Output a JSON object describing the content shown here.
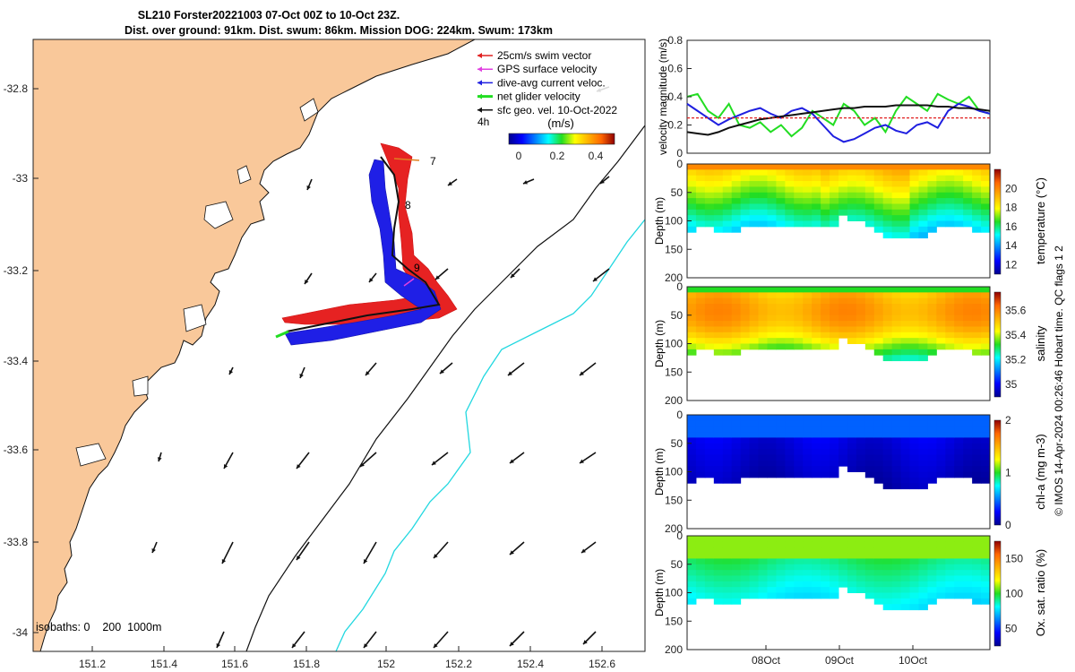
{
  "title": {
    "line1": "SL210 Forster20221003 07-Oct 00Z to 10-Oct 23Z.",
    "line2": "Dist. over ground: 91km. Dist. swum: 86km. Mission DOG: 224km. Swum: 173km"
  },
  "map": {
    "x_ticks": [
      "151.2",
      "151.4",
      "151.6",
      "151.8",
      "152",
      "152.2",
      "152.4",
      "152.6"
    ],
    "y_ticks": [
      "-32.8",
      "-33",
      "-33.2",
      "-33.4",
      "-33.6",
      "-33.8",
      "-34"
    ],
    "legend": [
      {
        "label": "25cm/s swim vector",
        "color": "#e02020"
      },
      {
        "label": "GPS surface velocity",
        "color": "#e040e0"
      },
      {
        "label": "dive-avg current veloc.",
        "color": "#1f1fe0"
      },
      {
        "label": "net glider velocity",
        "color": "#22dd22"
      },
      {
        "label": "sfc geo. vel. 10-Oct-2022",
        "color": "#111111"
      }
    ],
    "legend_extra": "4h",
    "colorbar_title": "(m/s)",
    "colorbar_ticks": [
      "0",
      "0.2",
      "0.4"
    ],
    "day_labels": [
      "7",
      "8",
      "9"
    ],
    "isobath_label": "isobaths: 0    200  1000m",
    "colors": {
      "land": "#f9c89a",
      "coast": "#111111",
      "iso200": "#111111",
      "iso1000": "#22d8e0"
    }
  },
  "chart_data": [
    {
      "type": "line",
      "title": "velocity magnitude",
      "ylabel": "velocity magnitude (m/s)",
      "ylim": [
        0,
        0.8
      ],
      "y_ticks": [
        "0",
        "0.2",
        "0.4",
        "0.6",
        "0.8"
      ],
      "series": [
        {
          "name": "net glider velocity",
          "color": "#22dd22",
          "values": [
            0.4,
            0.42,
            0.3,
            0.25,
            0.35,
            0.2,
            0.18,
            0.22,
            0.15,
            0.2,
            0.12,
            0.18,
            0.3,
            0.25,
            0.2,
            0.35,
            0.3,
            0.2,
            0.25,
            0.15,
            0.3,
            0.4,
            0.35,
            0.3,
            0.42,
            0.38,
            0.35,
            0.4,
            0.3,
            0.28
          ]
        },
        {
          "name": "dive-avg current veloc.",
          "color": "#1f1fe0",
          "values": [
            0.35,
            0.3,
            0.25,
            0.2,
            0.24,
            0.27,
            0.3,
            0.32,
            0.28,
            0.25,
            0.3,
            0.32,
            0.28,
            0.2,
            0.12,
            0.08,
            0.1,
            0.14,
            0.18,
            0.2,
            0.16,
            0.14,
            0.2,
            0.22,
            0.18,
            0.3,
            0.35,
            0.33,
            0.3,
            0.28
          ]
        },
        {
          "name": "sfc geo. vel.",
          "color": "#111111",
          "values": [
            0.15,
            0.14,
            0.13,
            0.15,
            0.18,
            0.2,
            0.22,
            0.24,
            0.25,
            0.26,
            0.27,
            0.28,
            0.29,
            0.3,
            0.31,
            0.32,
            0.32,
            0.33,
            0.33,
            0.33,
            0.34,
            0.34,
            0.34,
            0.34,
            0.33,
            0.33,
            0.32,
            0.32,
            0.31,
            0.3
          ]
        },
        {
          "name": "25cm/s swim",
          "color": "#e02020",
          "values": [
            0.25,
            0.25,
            0.25,
            0.25,
            0.25,
            0.25,
            0.25,
            0.25,
            0.25,
            0.25,
            0.25,
            0.25,
            0.25,
            0.25,
            0.25,
            0.25,
            0.25,
            0.25,
            0.25,
            0.25,
            0.25,
            0.25,
            0.25,
            0.25,
            0.25,
            0.25,
            0.25,
            0.25,
            0.25,
            0.25
          ]
        }
      ]
    },
    {
      "type": "heatmap",
      "title": "temperature",
      "ylabel": "Depth (m)",
      "ylim": [
        200,
        0
      ],
      "y_ticks": [
        "0",
        "50",
        "100",
        "150",
        "200"
      ],
      "colorbar_label": "temperature (°C)",
      "colorbar_ticks": [
        "12",
        "14",
        "16",
        "18",
        "20"
      ],
      "crange": [
        11,
        22
      ]
    },
    {
      "type": "heatmap",
      "title": "salinity",
      "ylabel": "Depth (m)",
      "ylim": [
        200,
        0
      ],
      "y_ticks": [
        "0",
        "50",
        "100",
        "150",
        "200"
      ],
      "colorbar_label": "salinity",
      "colorbar_ticks": [
        "35",
        "35.2",
        "35.4",
        "35.6"
      ],
      "crange": [
        34.9,
        35.75
      ]
    },
    {
      "type": "heatmap",
      "title": "chl-a",
      "ylabel": "Depth (m)",
      "ylim": [
        200,
        0
      ],
      "y_ticks": [
        "0",
        "50",
        "100",
        "150",
        "200"
      ],
      "colorbar_label": "chl-a (mg m-3)",
      "colorbar_ticks": [
        "0",
        "1",
        "2"
      ],
      "crange": [
        0,
        2
      ]
    },
    {
      "type": "heatmap",
      "title": "oxygen saturation",
      "ylabel": "Depth (m)",
      "ylim": [
        200,
        0
      ],
      "y_ticks": [
        "0",
        "50",
        "100",
        "150",
        "200"
      ],
      "colorbar_label": "Ox. sat. ratio (%)",
      "colorbar_ticks": [
        "50",
        "100",
        "150"
      ],
      "crange": [
        25,
        175
      ]
    }
  ],
  "time_axis": {
    "ticks": [
      "08Oct",
      "09Oct",
      "10Oct"
    ]
  },
  "footer": "© IMOS 14-Apr-2024 00:26:46 Hobart time. QC flags 1  2"
}
